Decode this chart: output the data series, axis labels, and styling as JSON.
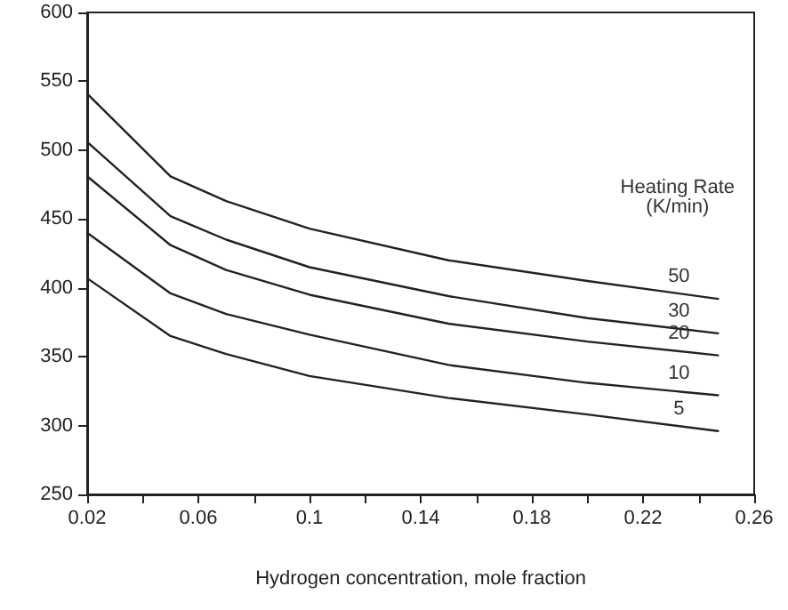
{
  "chart_data": {
    "type": "line",
    "xlabel": "Hydrogen concentration, mole fraction",
    "legend_title": "Heating Rate\n(K/min)",
    "x": [
      0.02,
      0.05,
      0.07,
      0.1,
      0.15,
      0.2,
      0.247
    ],
    "series": [
      {
        "name": "50",
        "color": "#222222",
        "values": [
          541,
          481,
          463,
          443,
          420,
          405,
          392
        ]
      },
      {
        "name": "30",
        "color": "#222222",
        "values": [
          506,
          452,
          435,
          415,
          394,
          378,
          367
        ]
      },
      {
        "name": "20",
        "color": "#222222",
        "values": [
          481,
          431,
          413,
          395,
          374,
          361,
          351
        ]
      },
      {
        "name": "10",
        "color": "#222222",
        "values": [
          440,
          396,
          381,
          366,
          344,
          331,
          322
        ]
      },
      {
        "name": "5",
        "color": "#222222",
        "values": [
          407,
          365,
          352,
          336,
          320,
          308,
          296
        ]
      }
    ],
    "xlim": [
      0.02,
      0.26
    ],
    "xticks": [
      0.02,
      {
        "value": 0.04,
        "label": null
      },
      0.06,
      {
        "value": 0.08,
        "label": null
      },
      0.1,
      {
        "value": 0.12,
        "label": null
      },
      0.14,
      {
        "value": 0.16,
        "label": null
      },
      0.18,
      {
        "value": 0.2,
        "label": null
      },
      0.22,
      {
        "value": 0.24,
        "label": null
      },
      0.26
    ],
    "ylim": [
      250,
      600
    ],
    "yticks": [
      250,
      300,
      350,
      400,
      450,
      500,
      550,
      600
    ],
    "grid": false,
    "legend": false,
    "marker": "none",
    "line_style": "solid"
  }
}
